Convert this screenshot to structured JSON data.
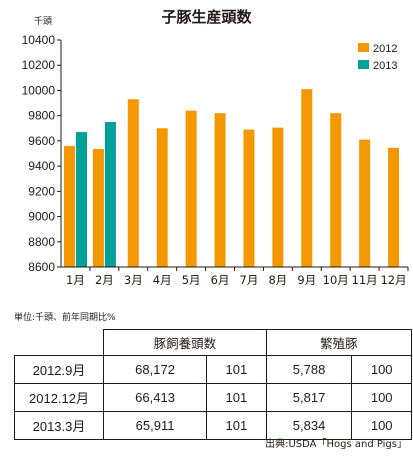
{
  "chart_data": {
    "type": "bar",
    "title": "子豚生産頭数",
    "ylabel": "千頭",
    "ylim": [
      8600,
      10400
    ],
    "yticks": [
      8600,
      8800,
      9000,
      9200,
      9400,
      9600,
      9800,
      10000,
      10200,
      10400
    ],
    "categories": [
      "1月",
      "2月",
      "3月",
      "4月",
      "5月",
      "6月",
      "7月",
      "8月",
      "9月",
      "10月",
      "11月",
      "12月"
    ],
    "series": [
      {
        "name": "2012",
        "color": "#f39800",
        "values": [
          9560,
          9535,
          9930,
          9700,
          9840,
          9820,
          9690,
          9705,
          10010,
          9820,
          9610,
          9545
        ]
      },
      {
        "name": "2013",
        "color": "#00a199",
        "values": [
          9670,
          9750,
          null,
          null,
          null,
          null,
          null,
          null,
          null,
          null,
          null,
          null
        ]
      }
    ],
    "legend_position": "top-right",
    "grid": false
  },
  "unit_note": "単位:千頭、前年同期比%",
  "table": {
    "headers": [
      "",
      "豚飼養頭数",
      "繁殖豚"
    ],
    "rows": [
      {
        "label": "2012.9月",
        "v1": "68,172",
        "p1": "101",
        "v2": "5,788",
        "p2": "100"
      },
      {
        "label": "2012.12月",
        "v1": "66,413",
        "p1": "101",
        "v2": "5,817",
        "p2": "100"
      },
      {
        "label": "2013.3月",
        "v1": "65,911",
        "p1": "101",
        "v2": "5,834",
        "p2": "100"
      }
    ]
  },
  "source": "出典:USDA「Hogs and Pigs」"
}
